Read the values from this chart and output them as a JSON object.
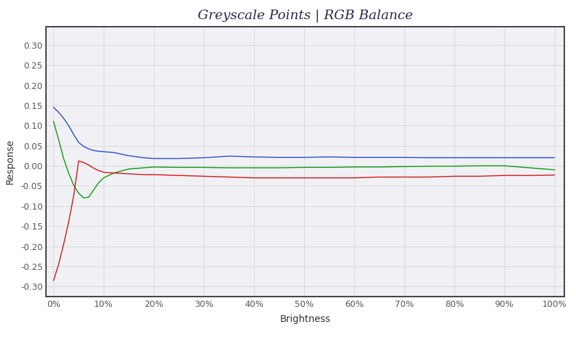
{
  "title": "Greyscale Points | RGB Balance",
  "xlabel": "Brightness",
  "ylabel": "Response",
  "background_color": "#ffffff",
  "plot_bg_color": "#f0f0f5",
  "grid_color": "#d8d8e0",
  "border_color": "#444444",
  "title_color": "#2a2a4a",
  "label_color": "#333333",
  "tick_color": "#555555",
  "ylim": [
    -0.325,
    0.345
  ],
  "yticks": [
    -0.3,
    -0.25,
    -0.2,
    -0.15,
    -0.1,
    -0.05,
    0.0,
    0.05,
    0.1,
    0.15,
    0.2,
    0.25,
    0.3
  ],
  "xtick_labels": [
    "0%",
    "10%",
    "20%",
    "30%",
    "40%",
    "50%",
    "60%",
    "70%",
    "80%",
    "90%",
    "100%"
  ],
  "xtick_positions": [
    0,
    10,
    20,
    30,
    40,
    50,
    60,
    70,
    80,
    90,
    100
  ],
  "xlim": [
    -1.5,
    102
  ],
  "blue": {
    "color": "#2244cc",
    "x": [
      0,
      1,
      2,
      3,
      4,
      5,
      6,
      7,
      8,
      9,
      10,
      12,
      15,
      18,
      20,
      25,
      30,
      35,
      40,
      45,
      50,
      55,
      60,
      65,
      70,
      75,
      80,
      85,
      90,
      95,
      100
    ],
    "y": [
      0.145,
      0.133,
      0.118,
      0.1,
      0.078,
      0.058,
      0.048,
      0.042,
      0.038,
      0.036,
      0.035,
      0.033,
      0.025,
      0.02,
      0.018,
      0.018,
      0.02,
      0.024,
      0.022,
      0.021,
      0.021,
      0.022,
      0.021,
      0.021,
      0.021,
      0.02,
      0.02,
      0.02,
      0.02,
      0.02,
      0.02
    ]
  },
  "green": {
    "color": "#009900",
    "x": [
      0,
      1,
      2,
      3,
      4,
      5,
      6,
      7,
      8,
      9,
      10,
      12,
      15,
      18,
      20,
      25,
      30,
      35,
      40,
      45,
      50,
      55,
      60,
      65,
      70,
      75,
      80,
      85,
      90,
      95,
      100
    ],
    "y": [
      0.11,
      0.065,
      0.018,
      -0.018,
      -0.048,
      -0.068,
      -0.08,
      -0.078,
      -0.06,
      -0.042,
      -0.03,
      -0.018,
      -0.008,
      -0.005,
      -0.003,
      -0.004,
      -0.004,
      -0.005,
      -0.005,
      -0.005,
      -0.004,
      -0.004,
      -0.003,
      -0.003,
      -0.002,
      -0.001,
      -0.001,
      0.0,
      0.0,
      -0.005,
      -0.01
    ]
  },
  "red": {
    "color": "#cc1111",
    "x": [
      0,
      1,
      2,
      3,
      4,
      5,
      6,
      7,
      8,
      9,
      10,
      12,
      15,
      18,
      20,
      25,
      30,
      35,
      40,
      45,
      50,
      55,
      60,
      65,
      70,
      75,
      80,
      85,
      90,
      95,
      100
    ],
    "y": [
      -0.285,
      -0.245,
      -0.195,
      -0.14,
      -0.075,
      0.012,
      0.008,
      0.002,
      -0.006,
      -0.012,
      -0.016,
      -0.018,
      -0.02,
      -0.022,
      -0.022,
      -0.024,
      -0.026,
      -0.028,
      -0.03,
      -0.03,
      -0.03,
      -0.03,
      -0.03,
      -0.028,
      -0.028,
      -0.028,
      -0.026,
      -0.026,
      -0.024,
      -0.024,
      -0.023
    ]
  },
  "title_fontsize": 14,
  "axis_label_fontsize": 10,
  "tick_fontsize": 9
}
